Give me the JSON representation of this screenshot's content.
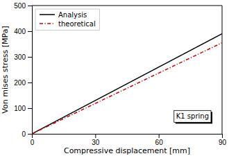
{
  "chart_data": {
    "type": "line",
    "xlabel": "Compressive displacement [mm]",
    "ylabel": "Von mises stress [MPa]",
    "x": [
      0,
      90
    ],
    "series": [
      {
        "name": "Analysis",
        "color": "#000000",
        "line_style": "solid",
        "values": [
          0,
          390
        ]
      },
      {
        "name": "theoretical",
        "color": "#cc0000",
        "line_style": "dashdot",
        "values": [
          0,
          355
        ]
      }
    ],
    "xlim": [
      0,
      90
    ],
    "ylim": [
      0,
      500
    ],
    "xticks": [
      0,
      30,
      60,
      90
    ],
    "yticks": [
      0,
      100,
      200,
      300,
      400,
      500
    ],
    "grid": false,
    "legend": "upper left",
    "annotations": [
      {
        "text": "K1 spring",
        "x": 76,
        "y": 68
      }
    ]
  }
}
